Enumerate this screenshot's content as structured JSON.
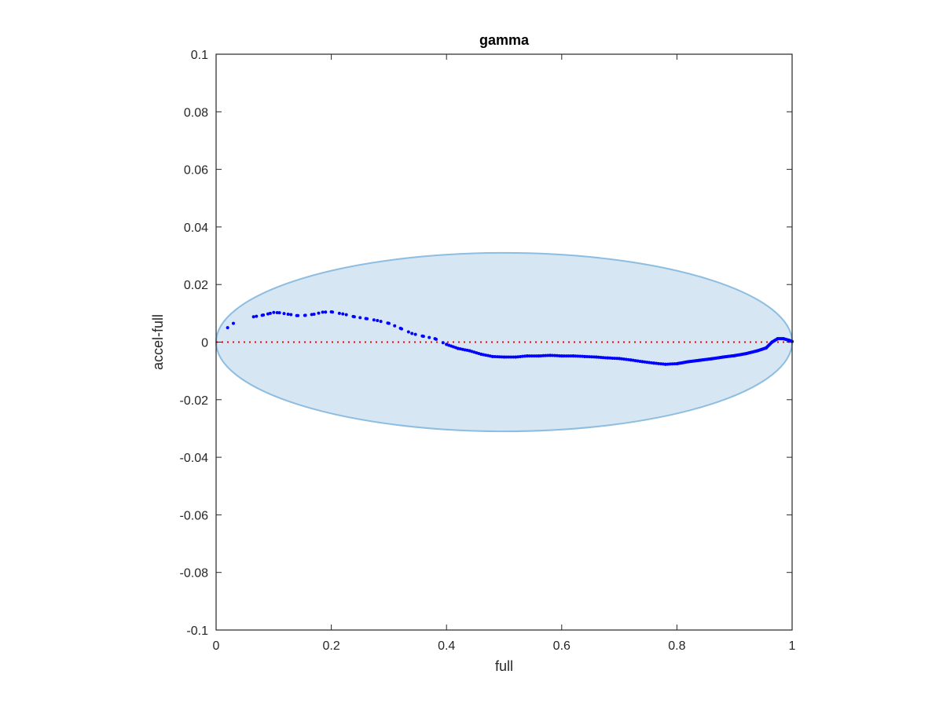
{
  "chart_data": {
    "type": "scatter",
    "title": "gamma",
    "xlabel": "full",
    "ylabel": "accel-full",
    "xlim": [
      0,
      1
    ],
    "ylim": [
      -0.1,
      0.1
    ],
    "x_ticks": [
      0,
      0.2,
      0.4,
      0.6,
      0.8,
      1
    ],
    "x_tick_labels": [
      "0",
      "0.2",
      "0.4",
      "0.6",
      "0.8",
      "1"
    ],
    "y_ticks": [
      -0.1,
      -0.08,
      -0.06,
      -0.04,
      -0.02,
      0,
      0.02,
      0.04,
      0.06,
      0.08,
      0.1
    ],
    "y_tick_labels": [
      "-0.1",
      "-0.08",
      "-0.06",
      "-0.04",
      "-0.02",
      "0",
      "0.02",
      "0.04",
      "0.06",
      "0.08",
      "0.1"
    ],
    "grid": false,
    "colors": {
      "points": "#0000ff",
      "reference_line": "#ff0000",
      "ellipse_fill": "#d6e6f2",
      "ellipse_edge": "#8dbde0",
      "axes": "#262626"
    },
    "reference_line": {
      "y": 0,
      "style": "dotted"
    },
    "ellipse": {
      "center_x": 0.5,
      "center_y": 0,
      "radius_x": 0.5,
      "radius_y": 0.031
    },
    "control_points": [
      [
        0.02,
        0.005
      ],
      [
        0.03,
        0.0065
      ],
      [
        0.065,
        0.0088
      ],
      [
        0.08,
        0.0093
      ],
      [
        0.09,
        0.0098
      ],
      [
        0.1,
        0.0103
      ],
      [
        0.11,
        0.0102
      ],
      [
        0.125,
        0.0097
      ],
      [
        0.14,
        0.0092
      ],
      [
        0.155,
        0.0093
      ],
      [
        0.17,
        0.0097
      ],
      [
        0.185,
        0.0104
      ],
      [
        0.2,
        0.0105
      ],
      [
        0.22,
        0.0098
      ],
      [
        0.24,
        0.0088
      ],
      [
        0.26,
        0.0082
      ],
      [
        0.28,
        0.0075
      ],
      [
        0.3,
        0.0065
      ],
      [
        0.32,
        0.0048
      ],
      [
        0.34,
        0.003
      ],
      [
        0.36,
        0.002
      ],
      [
        0.38,
        0.0012
      ],
      [
        0.4,
        -0.0008
      ],
      [
        0.42,
        -0.0022
      ],
      [
        0.44,
        -0.003
      ],
      [
        0.46,
        -0.0042
      ],
      [
        0.48,
        -0.005
      ],
      [
        0.5,
        -0.0052
      ],
      [
        0.52,
        -0.0052
      ],
      [
        0.54,
        -0.0048
      ],
      [
        0.56,
        -0.0048
      ],
      [
        0.58,
        -0.0046
      ],
      [
        0.6,
        -0.0048
      ],
      [
        0.62,
        -0.0048
      ],
      [
        0.64,
        -0.005
      ],
      [
        0.66,
        -0.0052
      ],
      [
        0.68,
        -0.0055
      ],
      [
        0.7,
        -0.0057
      ],
      [
        0.72,
        -0.0062
      ],
      [
        0.74,
        -0.0068
      ],
      [
        0.76,
        -0.0073
      ],
      [
        0.78,
        -0.0077
      ],
      [
        0.8,
        -0.0075
      ],
      [
        0.82,
        -0.0068
      ],
      [
        0.84,
        -0.0063
      ],
      [
        0.86,
        -0.0058
      ],
      [
        0.88,
        -0.0052
      ],
      [
        0.9,
        -0.0047
      ],
      [
        0.92,
        -0.004
      ],
      [
        0.94,
        -0.003
      ],
      [
        0.955,
        -0.002
      ],
      [
        0.965,
        0.0
      ],
      [
        0.975,
        0.0012
      ],
      [
        0.985,
        0.0012
      ],
      [
        0.995,
        0.0006
      ],
      [
        1.0,
        0.0002
      ]
    ]
  }
}
